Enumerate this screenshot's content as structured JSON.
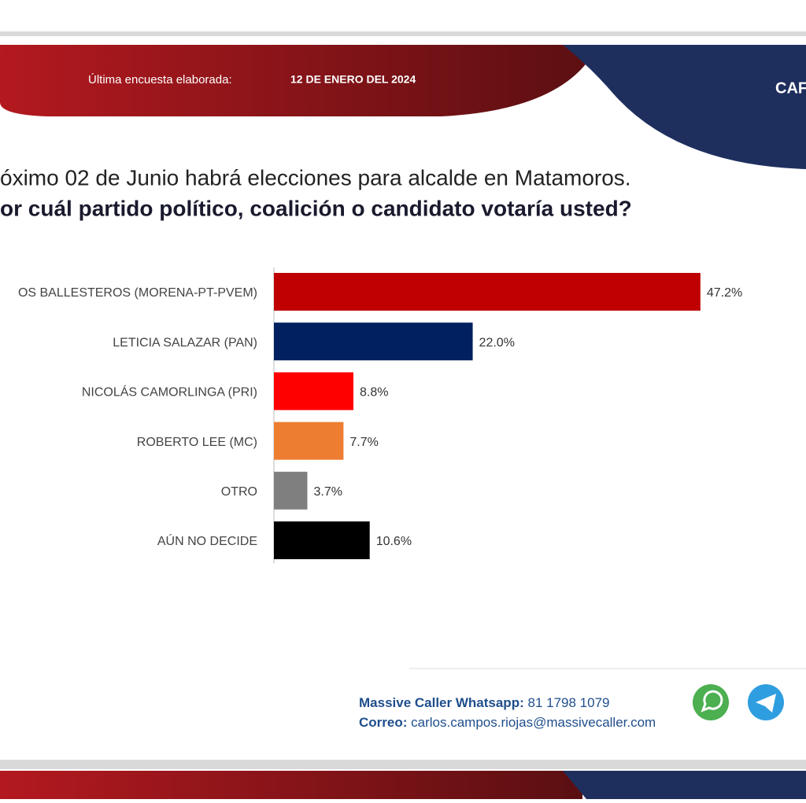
{
  "header": {
    "survey_label": "Última encuesta elaborada:",
    "survey_date": "12 DE ENERO DEL 2024",
    "brand_cropped": "CAF"
  },
  "chart_data": {
    "type": "bar",
    "orientation": "horizontal",
    "title": "óximo 02 de Junio habrá elecciones para alcalde en Matamoros.",
    "subtitle": "or cuál partido político, coalición o candidato votaría usted?",
    "categories": [
      "OS BALLESTEROS (MORENA-PT-PVEM)",
      "LETICIA SALAZAR (PAN)",
      "NICOLÁS CAMORLINGA (PRI)",
      "ROBERTO LEE (MC)",
      "OTRO",
      "AÚN NO DECIDE"
    ],
    "values": [
      47.2,
      22.0,
      8.8,
      7.7,
      3.7,
      10.6
    ],
    "value_labels": [
      "47.2%",
      "22.0%",
      "8.8%",
      "7.7%",
      "3.7%",
      "10.6%"
    ],
    "colors": [
      "#c00000",
      "#002060",
      "#ff0000",
      "#ed7d31",
      "#7f7f7f",
      "#000000"
    ]
  },
  "footer": {
    "whatsapp_label": "Massive Caller Whatsapp:",
    "whatsapp_number": "81 1798  1079",
    "email_label": "Correo:",
    "email": "carlos.campos.riojas@massivecaller.com"
  }
}
